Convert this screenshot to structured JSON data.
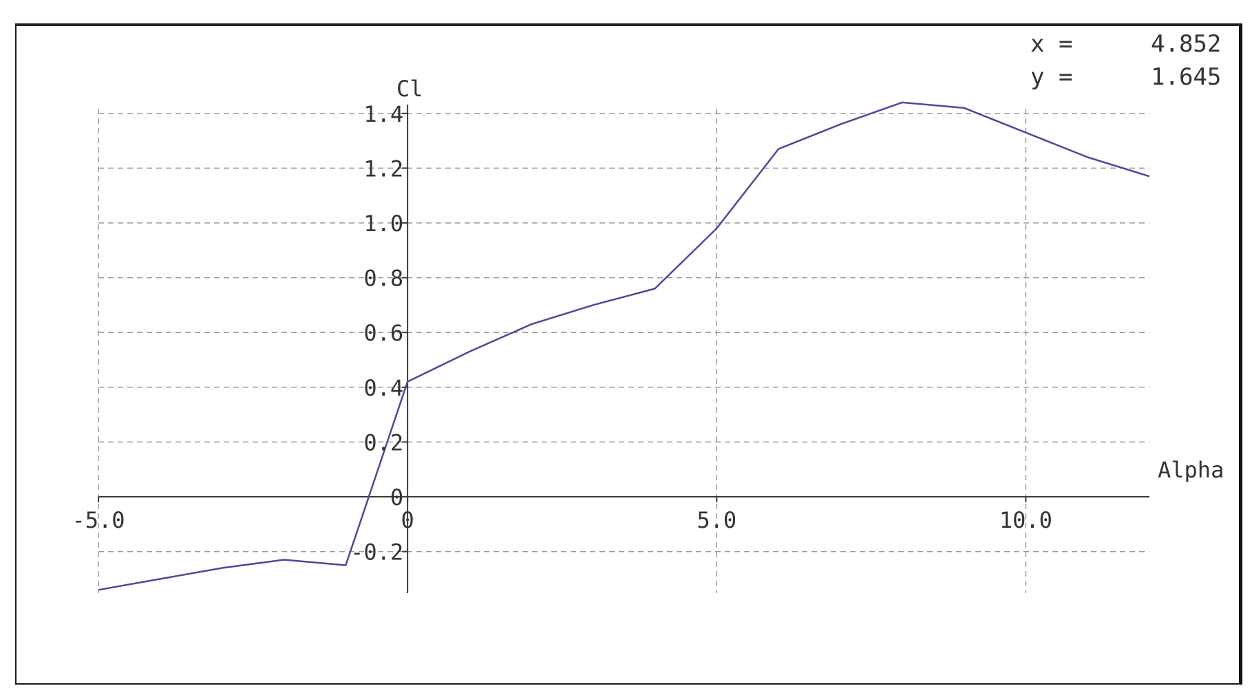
{
  "readout": {
    "x_label": "x =",
    "x_value": "4.852",
    "y_label": "y =",
    "y_value": "1.645"
  },
  "chart_data": {
    "type": "line",
    "xlabel": "Alpha",
    "ylabel": "Cl",
    "xlim": [
      -5.0,
      12.0
    ],
    "ylim": [
      -0.35,
      1.45
    ],
    "grid": true,
    "x_ticks": [
      {
        "value": -5.0,
        "label": "-5.0"
      },
      {
        "value": 0,
        "label": "0"
      },
      {
        "value": 5.0,
        "label": "5.0"
      },
      {
        "value": 10.0,
        "label": "10.0"
      }
    ],
    "y_ticks": [
      {
        "value": 1.4,
        "label": "1.4"
      },
      {
        "value": 1.2,
        "label": "1.2"
      },
      {
        "value": 1.0,
        "label": "1.0"
      },
      {
        "value": 0.8,
        "label": "0.8"
      },
      {
        "value": 0.6,
        "label": "0.6"
      },
      {
        "value": 0.4,
        "label": "0.4"
      },
      {
        "value": 0.2,
        "label": "0.2"
      },
      {
        "value": 0,
        "label": "0"
      },
      {
        "value": -0.2,
        "label": "-0.2"
      }
    ],
    "series": [
      {
        "color": "#4a4a9a",
        "x": [
          -5.0,
          -4.0,
          -3.0,
          -2.0,
          -1.0,
          0.0,
          1.0,
          2.0,
          3.0,
          4.0,
          5.0,
          6.0,
          7.0,
          8.0,
          9.0,
          10.0,
          11.0,
          12.0
        ],
        "y": [
          -0.34,
          -0.3,
          -0.26,
          -0.23,
          -0.25,
          0.42,
          0.53,
          0.63,
          0.7,
          0.76,
          0.98,
          1.27,
          1.36,
          1.44,
          1.42,
          1.33,
          1.24,
          1.17
        ]
      }
    ]
  }
}
